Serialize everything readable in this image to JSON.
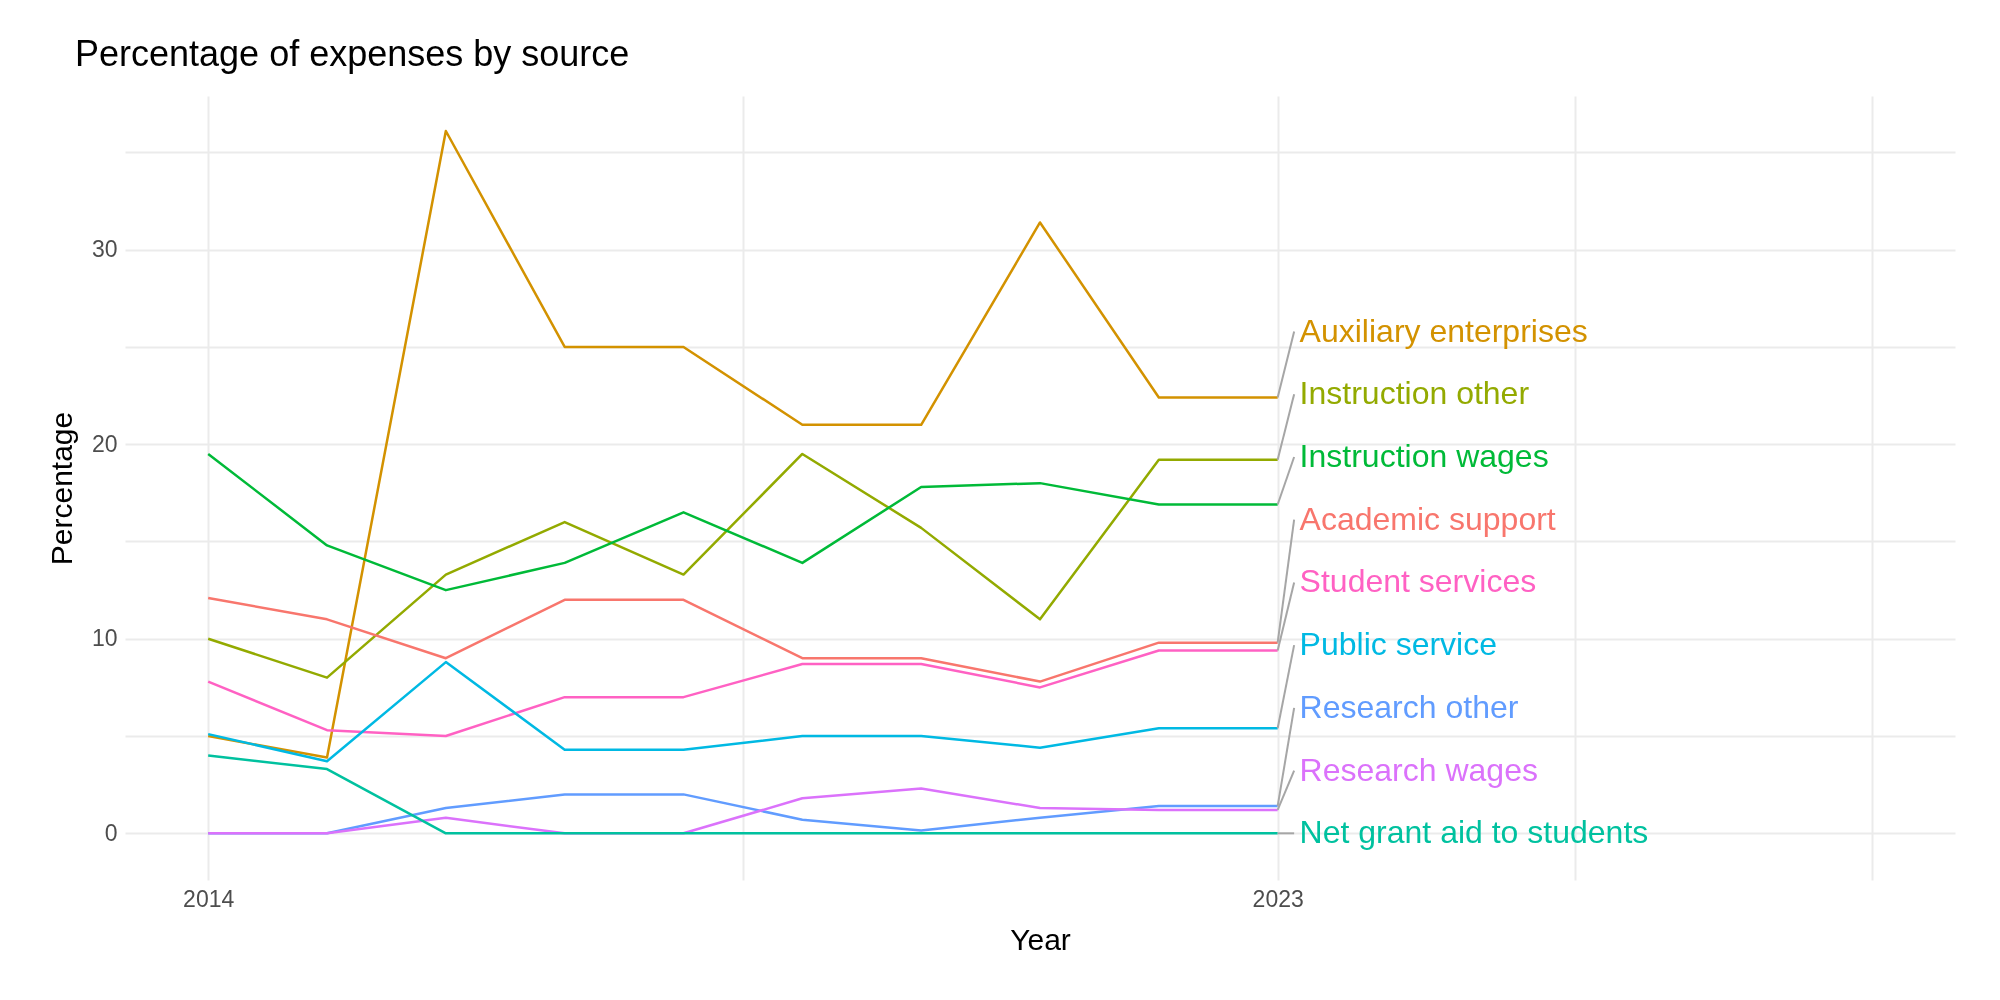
{
  "chart_data": {
    "type": "line",
    "title": "Percentage of expenses by source",
    "xlabel": "Year",
    "ylabel": "Percentage",
    "x": [
      2014,
      2015,
      2016,
      2017,
      2018,
      2019,
      2020,
      2021,
      2022,
      2023
    ],
    "series": [
      {
        "name": "Auxiliary enterprises",
        "color": "#d39200",
        "values": [
          5.0,
          3.9,
          36.1,
          25.0,
          25.0,
          21.0,
          21.0,
          31.4,
          22.4,
          22.4
        ]
      },
      {
        "name": "Instruction other",
        "color": "#93aa00",
        "values": [
          10.0,
          8.0,
          13.3,
          16.0,
          13.3,
          19.5,
          15.7,
          11.0,
          19.2,
          19.2
        ]
      },
      {
        "name": "Instruction wages",
        "color": "#00ba38",
        "values": [
          19.5,
          14.8,
          12.5,
          13.9,
          16.5,
          13.9,
          17.8,
          18.0,
          16.9,
          16.9
        ]
      },
      {
        "name": "Academic support",
        "color": "#f8766d",
        "values": [
          12.1,
          11.0,
          9.0,
          12.0,
          12.0,
          9.0,
          9.0,
          7.8,
          9.8,
          9.8
        ]
      },
      {
        "name": "Student services",
        "color": "#ff61c3",
        "values": [
          7.8,
          5.3,
          5.0,
          7.0,
          7.0,
          8.7,
          8.7,
          7.5,
          9.4,
          9.4
        ]
      },
      {
        "name": "Public service",
        "color": "#00b9e3",
        "values": [
          5.1,
          3.7,
          8.8,
          4.3,
          4.3,
          5.0,
          5.0,
          4.4,
          5.4,
          5.4
        ]
      },
      {
        "name": "Research other",
        "color": "#619cff",
        "values": [
          0.0,
          0.0,
          1.3,
          2.0,
          2.0,
          0.7,
          0.15,
          0.8,
          1.4,
          1.4
        ]
      },
      {
        "name": "Research wages",
        "color": "#db72fb",
        "values": [
          0.0,
          0.0,
          0.8,
          0.0,
          0.0,
          1.8,
          2.3,
          1.3,
          1.2,
          1.2
        ]
      },
      {
        "name": "Net grant aid to students",
        "color": "#00c19f",
        "values": [
          4.0,
          3.3,
          0.0,
          0.0,
          0.0,
          0.0,
          0.0,
          0.0,
          0.0,
          0.0
        ]
      }
    ],
    "xlim": [
      2013.3,
      2028.7
    ],
    "xticks": [
      2014,
      {
        "value": 2018.5,
        "label": null
      },
      2023,
      {
        "value": 2025.5,
        "label": null
      },
      {
        "value": 2028,
        "label": null
      }
    ],
    "ylim": [
      -2.4,
      37.9
    ],
    "yticks": [
      0,
      {
        "value": 5,
        "label": null
      },
      10,
      {
        "value": 15,
        "label": null
      },
      20,
      {
        "value": 25,
        "label": null
      },
      30,
      {
        "value": 35,
        "label": null
      }
    ],
    "grid": true,
    "legend": false,
    "marker": "none",
    "line_style": "solid"
  }
}
